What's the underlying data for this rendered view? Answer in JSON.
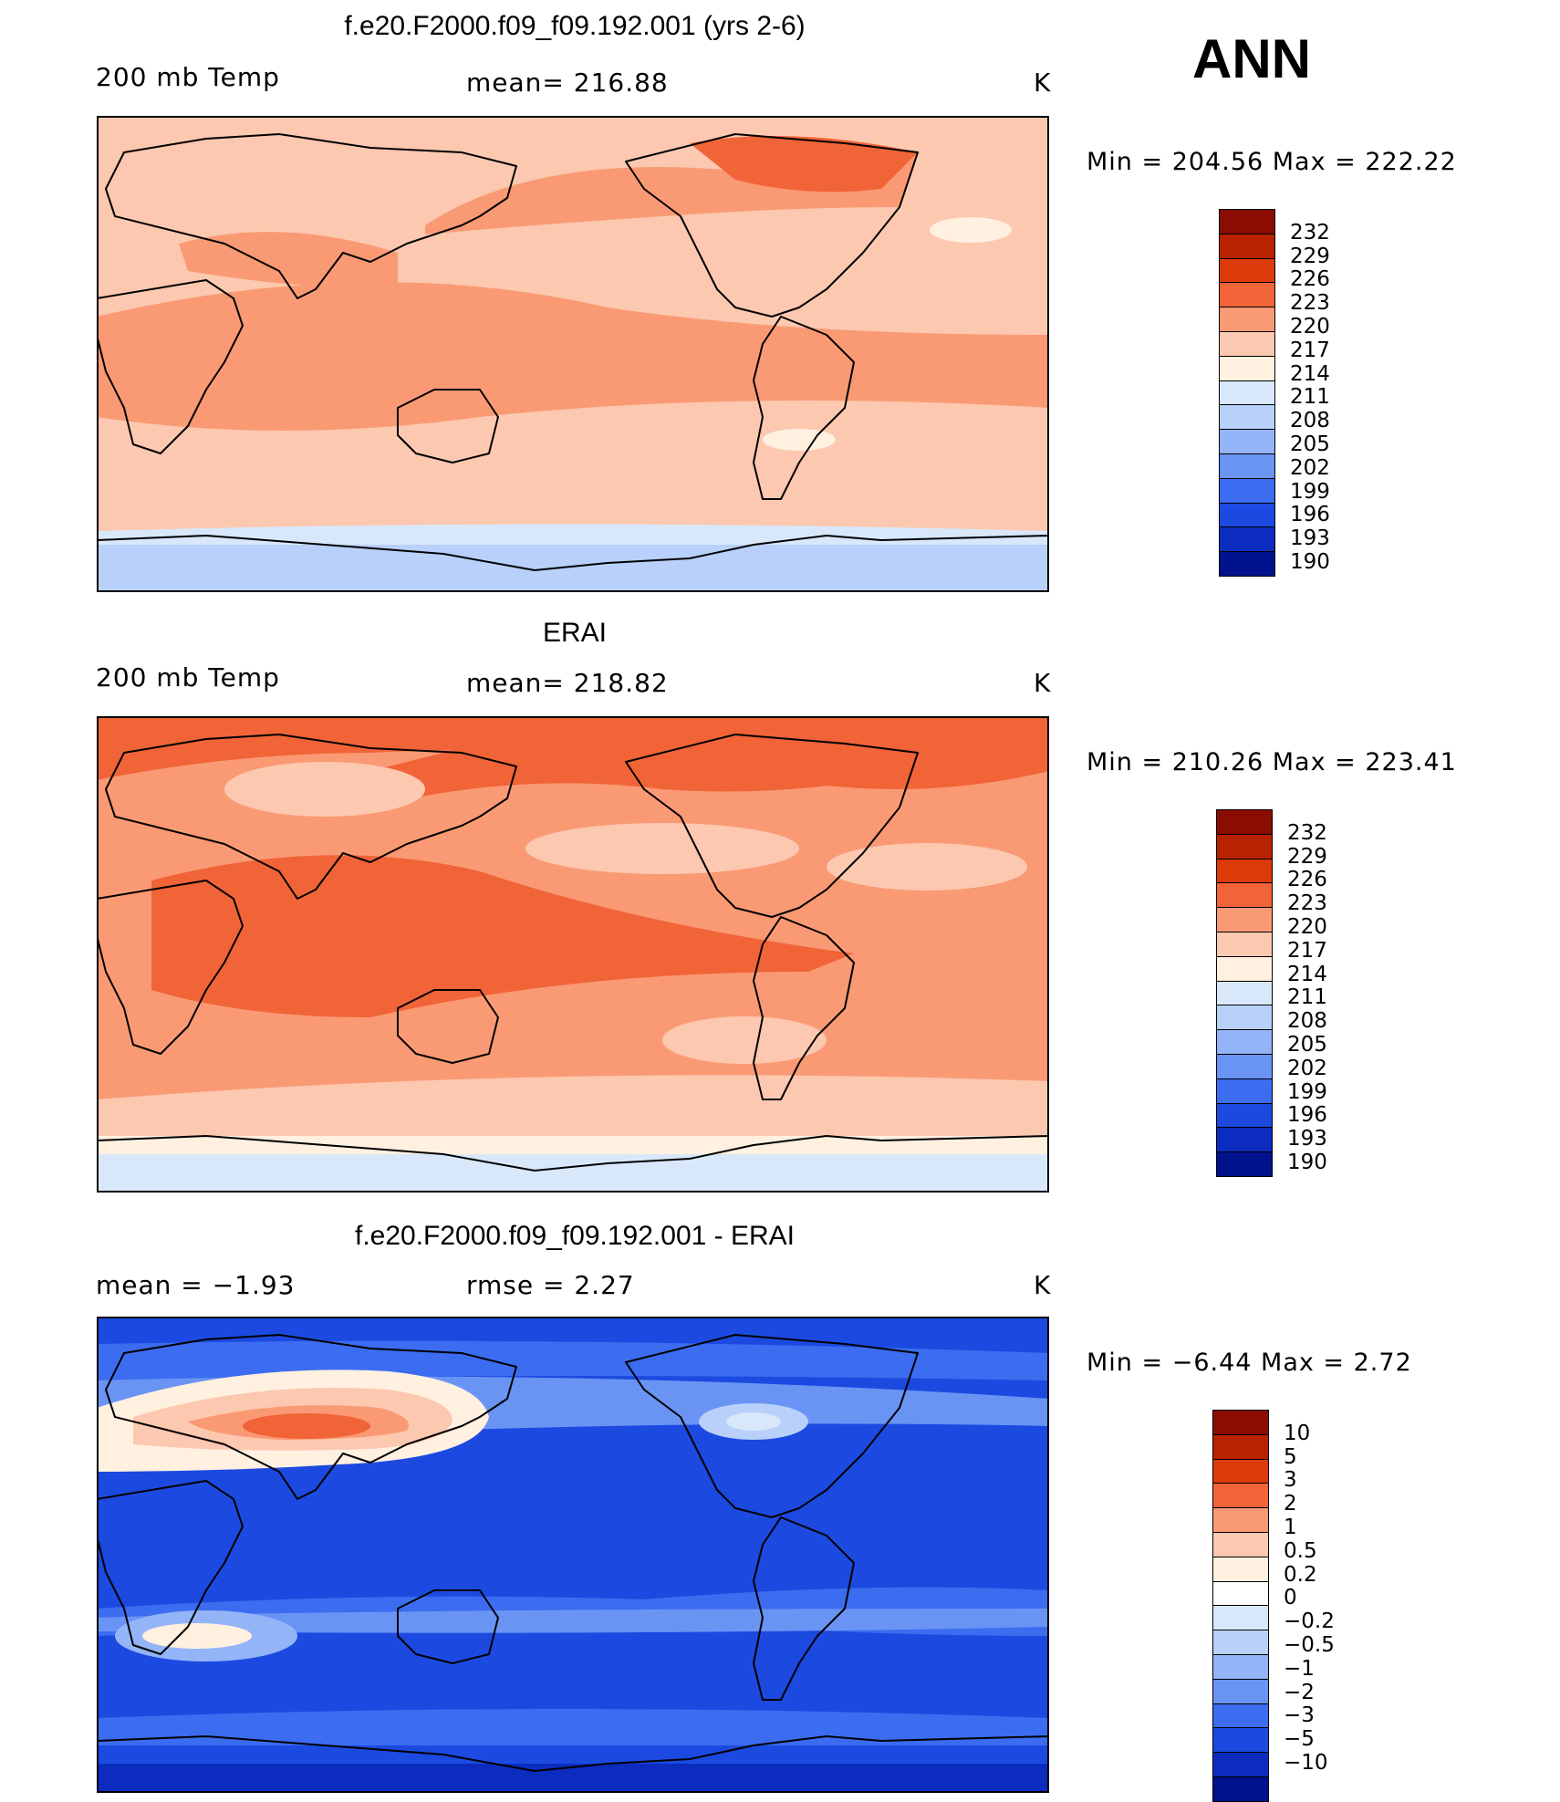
{
  "season": "ANN",
  "panels": [
    {
      "id": "model",
      "title": "f.e20.F2000.f09_f09.192.001 (yrs 2-6)",
      "left_label": "200 mb Temp",
      "center_label": "mean= 216.88",
      "units": "K",
      "minmax": "Min = 204.56 Max = 222.22",
      "background": "#fcc8b0",
      "levels": [
        "232",
        "229",
        "226",
        "223",
        "220",
        "217",
        "214",
        "211",
        "208",
        "205",
        "202",
        "199",
        "196",
        "193",
        "190"
      ],
      "colors": [
        "#8b0c00",
        "#b82200",
        "#dd3a0a",
        "#f06438",
        "#fa9a74",
        "#fcc8b0",
        "#fff0e0",
        "#d8e8fa",
        "#b8d0fa",
        "#94b4f8",
        "#6a94f4",
        "#3c6cf0",
        "#1c4ae0",
        "#0c2cc0",
        "#00128c"
      ]
    },
    {
      "id": "obs",
      "title": "ERAI",
      "left_label": "200 mb Temp",
      "center_label": "mean= 218.82",
      "units": "K",
      "minmax": "Min = 210.26 Max = 223.41",
      "background": "#fa9a74",
      "levels": [
        "232",
        "229",
        "226",
        "223",
        "220",
        "217",
        "214",
        "211",
        "208",
        "205",
        "202",
        "199",
        "196",
        "193",
        "190"
      ],
      "colors": [
        "#8b0c00",
        "#b82200",
        "#dd3a0a",
        "#f06438",
        "#fa9a74",
        "#fcc8b0",
        "#fff0e0",
        "#d8e8fa",
        "#b8d0fa",
        "#94b4f8",
        "#6a94f4",
        "#3c6cf0",
        "#1c4ae0",
        "#0c2cc0",
        "#00128c"
      ]
    },
    {
      "id": "diff",
      "title": "f.e20.F2000.f09_f09.192.001 - ERAI",
      "left_label": "mean =   −1.93",
      "center_label": "rmse =    2.27",
      "units": "K",
      "minmax": "Min =  −6.44 Max =    2.72",
      "background": "#1c4ae0",
      "levels": [
        "10",
        "5",
        "3",
        "2",
        "1",
        "0.5",
        "0.2",
        "0",
        "−0.2",
        "−0.5",
        "−1",
        "−2",
        "−3",
        "−5",
        "−10"
      ],
      "colors": [
        "#8b0c00",
        "#b82200",
        "#dd3a0a",
        "#f06438",
        "#fa9a74",
        "#fcc8b0",
        "#fff0e0",
        "#ffffff",
        "#d8e8fa",
        "#b8d0fa",
        "#94b4f8",
        "#6a94f4",
        "#3c6cf0",
        "#1c4ae0",
        "#0c2cc0",
        "#00128c"
      ]
    }
  ]
}
